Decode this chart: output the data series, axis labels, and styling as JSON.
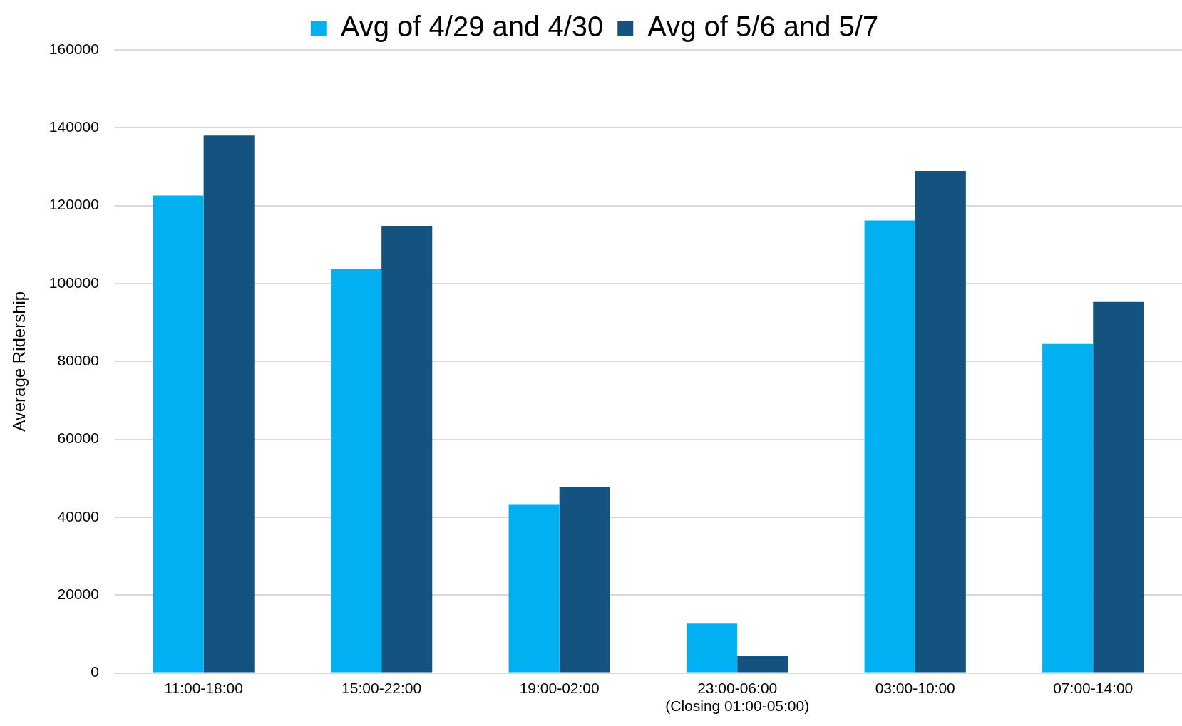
{
  "chart_data": {
    "type": "bar",
    "ylabel": "Average Ridership",
    "categories": [
      "11:00-18:00",
      "15:00-22:00",
      "19:00-02:00",
      "23:00-06:00\n(Closing 01:00-05:00)",
      "03:00-10:00",
      "07:00-14:00"
    ],
    "series": [
      {
        "name": "Avg of 4/29 and 4/30",
        "color": "#00b0f0",
        "values": [
          122600,
          103700,
          43200,
          12700,
          116200,
          84500
        ]
      },
      {
        "name": "Avg of 5/6 and 5/7",
        "color": "#145380",
        "values": [
          138000,
          114800,
          47700,
          4300,
          128900,
          95300
        ]
      }
    ],
    "ylim": [
      0,
      160000
    ],
    "yticks": [
      0,
      20000,
      40000,
      60000,
      80000,
      100000,
      120000,
      140000,
      160000
    ],
    "grid": "y",
    "legend": "top"
  }
}
